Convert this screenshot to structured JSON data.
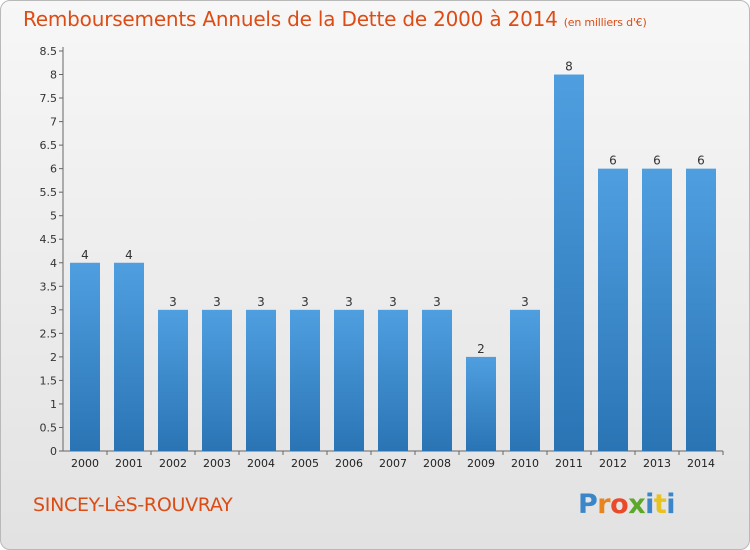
{
  "header": {
    "title": "Remboursements Annuels de la Dette de 2000 à 2014",
    "unit": "(en milliers d'€)"
  },
  "footer": {
    "commune": "SINCEY-LèS-ROUVRAY",
    "logo_letters": [
      "P",
      "r",
      "o",
      "x",
      "i",
      "t",
      "i"
    ],
    "logo_colors": [
      "#3a86c8",
      "#e8831e",
      "#e84a2a",
      "#5ba82a",
      "#3a86c8",
      "#e8c21e",
      "#3a86c8"
    ]
  },
  "chart_data": {
    "type": "bar",
    "categories": [
      "2000",
      "2001",
      "2002",
      "2003",
      "2004",
      "2005",
      "2006",
      "2007",
      "2008",
      "2009",
      "2010",
      "2011",
      "2012",
      "2013",
      "2014"
    ],
    "values": [
      4,
      4,
      3,
      3,
      3,
      3,
      3,
      3,
      3,
      2,
      3,
      8,
      6,
      6,
      6
    ],
    "labels": [
      "4",
      "4",
      "3",
      "3",
      "3",
      "3",
      "3",
      "3",
      "3",
      "2",
      "3",
      "8",
      "6",
      "6",
      "6"
    ],
    "y_ticks": [
      "0",
      "0.5",
      "1",
      "1.5",
      "2",
      "2.5",
      "3",
      "3.5",
      "4",
      "4.5",
      "5",
      "5.5",
      "6",
      "6.5",
      "7",
      "7.5",
      "8",
      "8.5"
    ],
    "ylim": [
      0,
      8.5
    ],
    "grid": false,
    "bar_color": "#4f9fe0",
    "bar_color_dark": "#2a74b4"
  }
}
